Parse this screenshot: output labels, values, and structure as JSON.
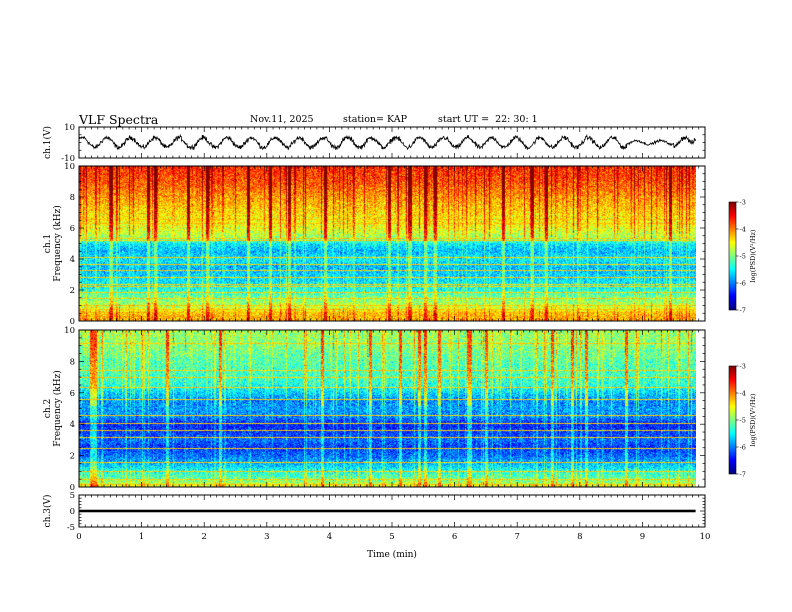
{
  "header": {
    "title": "VLF Spectra",
    "date": "Nov.11, 2025",
    "station_label": "station= KAP",
    "start_label": "start  UT  =",
    "start_value": "22: 30: 1"
  },
  "chart_data": [
    {
      "type": "line",
      "name": "ch1-waveform",
      "ylabel": "ch.1(V)",
      "ylim": [
        -10,
        10
      ],
      "yticks": [
        "10",
        "-10"
      ],
      "xlim": [
        0,
        10
      ],
      "x_end": 9.85,
      "pattern": {
        "oscillations": 26,
        "amplitude_v": 3.2,
        "noise_v": 1.3,
        "quiet_start": 8.75,
        "quiet_end": 9.5,
        "quiet_amplitude_v": 1.2
      },
      "trace_color": "#000000"
    },
    {
      "type": "heatmap",
      "name": "ch1-spectrogram",
      "ylabel_channel": "ch.1",
      "ylabel": "Frequency  (kHz)",
      "ylim": [
        0,
        10
      ],
      "yticks": [
        "0",
        "2",
        "4",
        "6",
        "8",
        "10"
      ],
      "xlim": [
        0,
        10
      ],
      "x_end": 9.85,
      "profile": [
        {
          "f": 0.0,
          "level": -4.2
        },
        {
          "f": 0.5,
          "level": -4.3
        },
        {
          "f": 1.0,
          "level": -4.8
        },
        {
          "f": 1.6,
          "level": -5.1
        },
        {
          "f": 2.0,
          "level": -5.4
        },
        {
          "f": 2.6,
          "level": -5.6
        },
        {
          "f": 3.0,
          "level": -5.7
        },
        {
          "f": 3.5,
          "level": -5.8
        },
        {
          "f": 4.0,
          "level": -5.55
        },
        {
          "f": 4.5,
          "level": -5.8
        },
        {
          "f": 5.0,
          "level": -5.6
        },
        {
          "f": 5.4,
          "level": -4.9
        },
        {
          "f": 6.0,
          "level": -4.6
        },
        {
          "f": 7.0,
          "level": -4.4
        },
        {
          "f": 8.0,
          "level": -4.15
        },
        {
          "f": 9.0,
          "level": -3.85
        },
        {
          "f": 10.0,
          "level": -3.7
        }
      ],
      "lines_khz": [
        0.3,
        0.55,
        0.8,
        1.05,
        1.5,
        1.85,
        2.25,
        2.4,
        2.85,
        3.3,
        3.65,
        4.15,
        5.2,
        5.35,
        6.3,
        6.55,
        8.1,
        8.4,
        9.3
      ],
      "colorbar": {
        "label": "log(PSD)(V²/Hz)",
        "min": -7,
        "max": -3,
        "ticks": [
          "-3",
          "-4",
          "-5",
          "-6",
          "-7"
        ]
      }
    },
    {
      "type": "heatmap",
      "name": "ch2-spectrogram",
      "ylabel_channel": "ch.2",
      "ylabel": "Frequency  (kHz)",
      "ylim": [
        0,
        10
      ],
      "yticks": [
        "0",
        "2",
        "4",
        "6",
        "8",
        "10"
      ],
      "xlim": [
        0,
        10
      ],
      "x_end": 9.85,
      "profile": [
        {
          "f": 0.0,
          "level": -4.5
        },
        {
          "f": 0.5,
          "level": -5.1
        },
        {
          "f": 1.0,
          "level": -5.4
        },
        {
          "f": 1.5,
          "level": -5.8
        },
        {
          "f": 2.0,
          "level": -6.1
        },
        {
          "f": 2.6,
          "level": -6.3
        },
        {
          "f": 3.0,
          "level": -6.1
        },
        {
          "f": 3.5,
          "level": -6.3
        },
        {
          "f": 4.0,
          "level": -6.4
        },
        {
          "f": 4.5,
          "level": -6.0
        },
        {
          "f": 5.0,
          "level": -5.9
        },
        {
          "f": 5.5,
          "level": -6.0
        },
        {
          "f": 6.0,
          "level": -5.7
        },
        {
          "f": 6.5,
          "level": -5.4
        },
        {
          "f": 7.0,
          "level": -5.3
        },
        {
          "f": 8.0,
          "level": -5.2
        },
        {
          "f": 9.0,
          "level": -5.0
        },
        {
          "f": 10.0,
          "level": -4.9
        }
      ],
      "lines_khz": [
        0.2,
        0.5,
        1.0,
        1.6,
        2.5,
        3.2,
        3.6,
        4.1,
        4.6,
        5.6,
        6.35,
        7.0,
        7.45,
        9.2
      ],
      "colorbar": {
        "label": "log(PSD)(V²/Hz)",
        "min": -7,
        "max": -3,
        "ticks": [
          "-3",
          "-4",
          "-5",
          "-6",
          "-7"
        ]
      }
    },
    {
      "type": "line",
      "name": "ch3-waveform",
      "ylabel": "ch.3(V)",
      "ylim": [
        -5,
        5
      ],
      "yticks": [
        "5",
        "0",
        "-5"
      ],
      "xlim": [
        0,
        10
      ],
      "x_end": 9.85,
      "constant_v": 0,
      "band_half_width_v": 0.4,
      "xlabel": "Time  (min)",
      "xticks": [
        "0",
        "1",
        "2",
        "3",
        "4",
        "5",
        "6",
        "7",
        "8",
        "9",
        "10"
      ]
    }
  ]
}
